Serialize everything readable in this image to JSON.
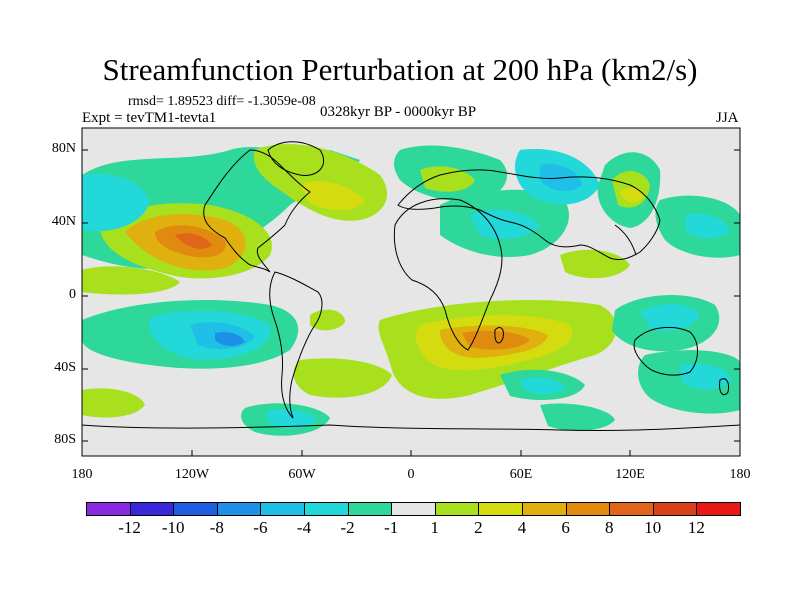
{
  "title": "Streamfunction Perturbation at 200 hPa (km2/s)",
  "stats": "rmsd= 1.89523 diff= -1.3059e-08",
  "expt": "Expt = tevTM1-tevta1",
  "period": "0328kyr BP - 0000kyr BP",
  "season": "JJA",
  "y_ticks": [
    "80N",
    "40N",
    "0",
    "40S",
    "80S"
  ],
  "x_ticks": [
    "180",
    "120W",
    "60W",
    "0",
    "60E",
    "120E",
    "180"
  ],
  "colorbar": {
    "colors": [
      "#8a2be2",
      "#3a28d8",
      "#1d5fe0",
      "#1e90e6",
      "#1fbfe8",
      "#22d8d8",
      "#2ed89a",
      "#e6e6e6",
      "#a8e01e",
      "#d4dc10",
      "#e0b00e",
      "#e08a10",
      "#e0641a",
      "#d8401a",
      "#e81818"
    ],
    "labels": [
      "-12",
      "-10",
      "-8",
      "-6",
      "-4",
      "-2",
      "-1",
      "1",
      "2",
      "4",
      "6",
      "8",
      "10",
      "12"
    ]
  }
}
